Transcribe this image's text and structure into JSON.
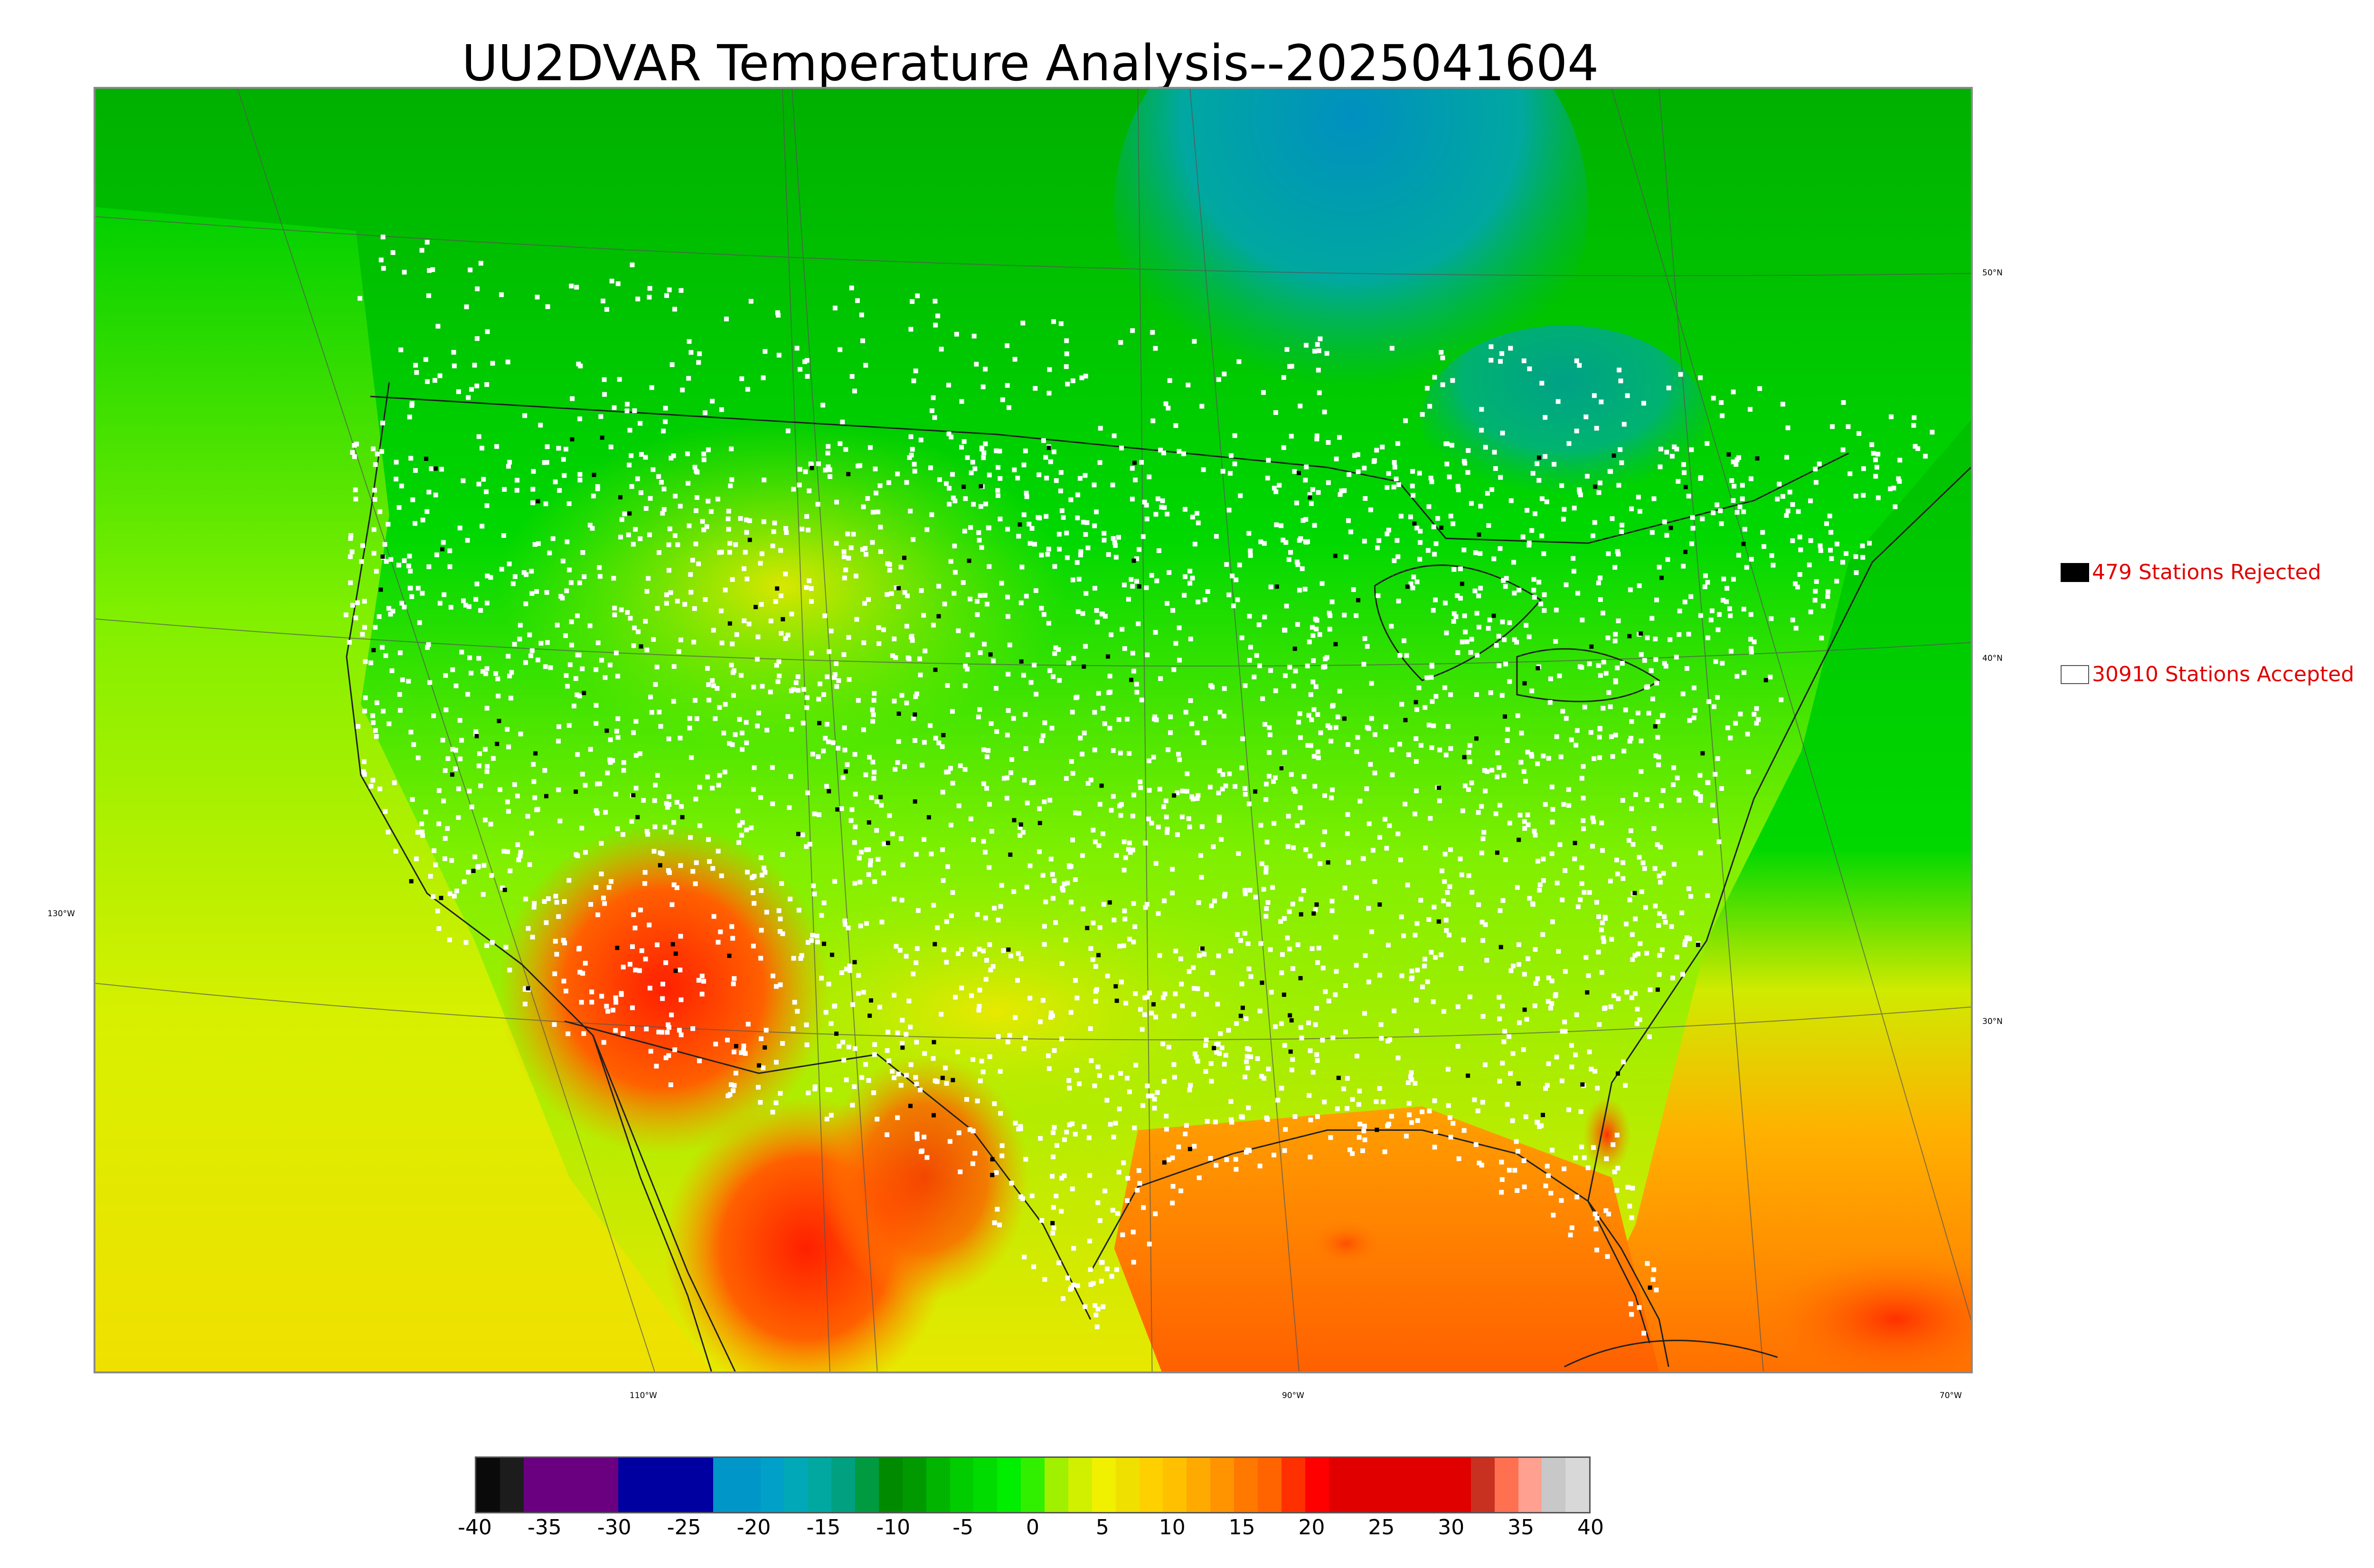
{
  "title": "UU2DVAR Temperature Analysis--2025041604",
  "legend": {
    "rejected": {
      "label": "479 Stations Rejected",
      "swatch_color": "#000000"
    },
    "accepted": {
      "label": "30910 Stations Accepted",
      "swatch_color": "#ffffff"
    }
  },
  "graticule": {
    "lat_labels": [
      "50°N",
      "40°N",
      "30°N"
    ],
    "lon_labels": [
      "130°W",
      "110°W",
      "90°W",
      "70°W"
    ]
  },
  "colorbar": {
    "ticks": [
      "-40",
      "-35",
      "-30",
      "-25",
      "-20",
      "-15",
      "-10",
      "-5",
      "0",
      "5",
      "10",
      "15",
      "20",
      "25",
      "30",
      "35",
      "40"
    ],
    "min": -40,
    "max": 40,
    "colors": [
      "#0a0a0a",
      "#1c1c1c",
      "#6a0080",
      "#6a0080",
      "#6a0080",
      "#6a0080",
      "#0000a0",
      "#0000a0",
      "#0000a0",
      "#0000a0",
      "#0096c8",
      "#0096c8",
      "#00a0c8",
      "#00a8b8",
      "#00a8a0",
      "#00a080",
      "#009a40",
      "#008a00",
      "#009a00",
      "#00b400",
      "#00cc00",
      "#00dc00",
      "#00ee00",
      "#30f000",
      "#a0f000",
      "#d0f000",
      "#f0f000",
      "#f0e000",
      "#ffd000",
      "#ffc000",
      "#ffaa00",
      "#ff9400",
      "#ff7800",
      "#ff6400",
      "#ff3000",
      "#ff0000",
      "#e00000",
      "#e00000",
      "#e00000",
      "#e00000",
      "#e00000",
      "#e00000",
      "#c83020",
      "#ff7050",
      "#ffa090",
      "#c8c8c8",
      "#d8d8d8"
    ]
  },
  "colors": {
    "land_north": "#00b000",
    "land_central": "#20e000",
    "land_west": "#e0ec00",
    "southwest_hot": "#ff3000",
    "ocean_pacific": "#c8ee00",
    "ocean_atlantic": "#ffa800",
    "gulf": "#ff9400",
    "hudson_cold": "#0096c0",
    "station_accepted": "#ffffff",
    "station_rejected": "#000000"
  }
}
